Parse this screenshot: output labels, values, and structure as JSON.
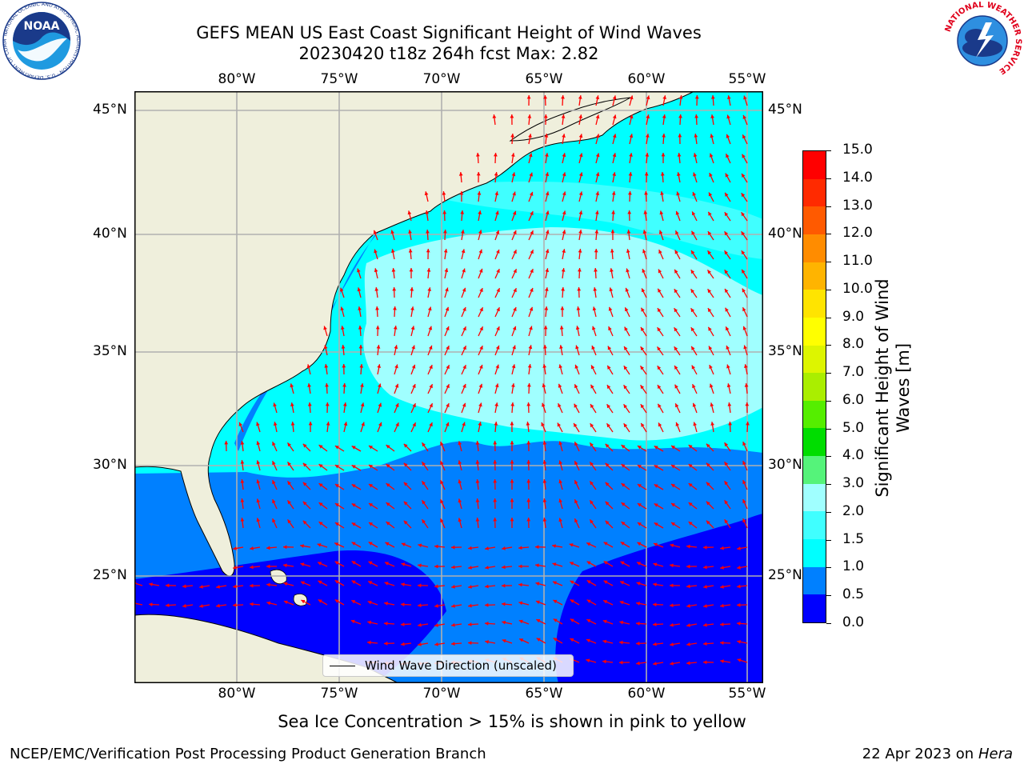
{
  "header": {
    "title_line1": "GEFS MEAN US East Coast Significant Height of Wind Waves",
    "title_line2": "20230420 t18z 264h fcst   Max: 2.82"
  },
  "logos": {
    "noaa": {
      "text": "NOAA",
      "ring_text": "NATIONAL OCEANIC AND ATMOSPHERIC ADMINISTRATION · U.S. DEPARTMENT OF COMMERCE"
    },
    "nws": {
      "ring_text": "NATIONAL WEATHER SERVICE"
    }
  },
  "map": {
    "lon_labels": [
      "80°W",
      "75°W",
      "70°W",
      "65°W",
      "60°W",
      "55°W"
    ],
    "lat_labels": [
      "45°N",
      "40°N",
      "35°N",
      "30°N",
      "25°N"
    ],
    "land_color": "#efefdc",
    "arrow_color": "#ff0000",
    "grid_color": "#b0b0b0",
    "legend_label": "Wind Wave Direction (unscaled)"
  },
  "colorbar": {
    "label": "Significant Height of Wind Waves [m]",
    "label_line1": "Significant Height of Wind",
    "label_line2": "Waves [m]",
    "ticks": [
      "0.0",
      "0.5",
      "1.0",
      "1.5",
      "2.0",
      "3.0",
      "4.0",
      "5.0",
      "6.0",
      "7.0",
      "8.0",
      "9.0",
      "10.0",
      "11.0",
      "12.0",
      "13.0",
      "14.0",
      "15.0"
    ],
    "colors": [
      "#0000ff",
      "#0080ff",
      "#00ffff",
      "#40ffff",
      "#a0ffff",
      "#55f37a",
      "#00dd00",
      "#55ee00",
      "#aaee00",
      "#ddf500",
      "#ffff00",
      "#ffe400",
      "#ffb400",
      "#ff8c00",
      "#ff5a00",
      "#ff2a00",
      "#ff0000"
    ]
  },
  "footer": {
    "note": "Sea Ice Concentration > 15% is shown in pink to yellow",
    "left": "NCEP/EMC/Verification Post Processing Product Generation Branch",
    "date": "22 Apr 2023 on ",
    "machine": "Hera"
  }
}
